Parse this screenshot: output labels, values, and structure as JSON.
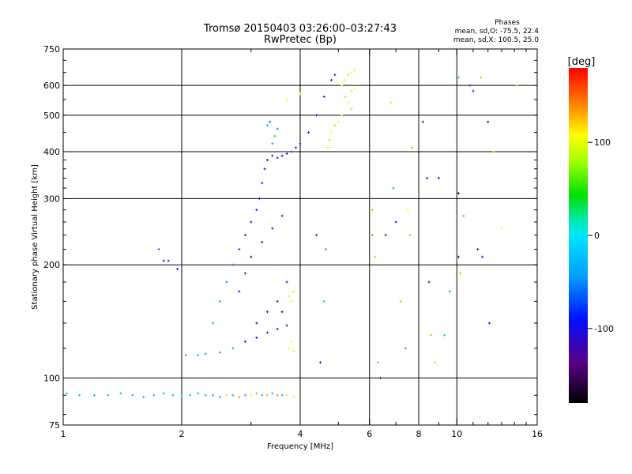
{
  "chart_data": {
    "type": "scatter",
    "title": "Tromsø 20150403 03:26:00–03:27:43",
    "subtitle": "RwPretec (Bp)",
    "xlabel": "Frequency [MHz]",
    "ylabel": "Stationary phase Virtual Height [km]",
    "x_scale": "log",
    "y_scale": "log",
    "xlim": [
      1,
      16
    ],
    "ylim": [
      75,
      750
    ],
    "x_ticks": [
      1,
      2,
      4,
      6,
      8,
      10,
      16
    ],
    "y_ticks": [
      75,
      100,
      200,
      300,
      400,
      500,
      600,
      750
    ],
    "x_major_lines": [
      2,
      4,
      6,
      8,
      10
    ],
    "y_major_lines": [
      100,
      200,
      300,
      400,
      500,
      600
    ],
    "grid": true,
    "phase_info": {
      "heading": "Phases",
      "line1": "mean, sd,O: -75.5, 22.4",
      "line2": "mean, sd,X: 100.5, 25.0"
    },
    "colorbar": {
      "label": "[deg]",
      "range": [
        -180,
        180
      ],
      "ticks": [
        100,
        0,
        -100
      ],
      "tick_labels": [
        "100",
        "0",
        "-100"
      ],
      "colormap": "rainbow"
    },
    "series": [
      {
        "description": "E-layer trace",
        "points": [
          [
            1.02,
            91,
            -30
          ],
          [
            1.1,
            90,
            -30
          ],
          [
            1.2,
            90,
            -30
          ],
          [
            1.3,
            90,
            -28
          ],
          [
            1.4,
            91,
            -30
          ],
          [
            1.5,
            90,
            -30
          ],
          [
            1.6,
            89,
            -30
          ],
          [
            1.7,
            90,
            -28
          ],
          [
            1.8,
            91,
            -30
          ],
          [
            1.9,
            90,
            -30
          ],
          [
            2.0,
            90,
            -30
          ],
          [
            2.1,
            90,
            -28
          ],
          [
            2.2,
            91,
            -30
          ],
          [
            2.3,
            90,
            -30
          ],
          [
            2.4,
            90,
            -30
          ],
          [
            2.5,
            89,
            -28
          ],
          [
            2.6,
            90,
            120
          ],
          [
            2.7,
            90,
            -30
          ],
          [
            2.8,
            89,
            140
          ],
          [
            2.9,
            90,
            -30
          ],
          [
            3.0,
            90,
            100
          ],
          [
            3.1,
            91,
            140
          ],
          [
            3.2,
            90,
            -30
          ],
          [
            3.3,
            90,
            130
          ],
          [
            3.4,
            91,
            -30
          ],
          [
            3.5,
            90,
            140
          ],
          [
            3.6,
            90,
            -30
          ],
          [
            3.7,
            90,
            120
          ],
          [
            3.85,
            89,
            100
          ]
        ]
      },
      {
        "description": "F1/F2 low trace",
        "points": [
          [
            2.05,
            115,
            -40
          ],
          [
            2.2,
            115,
            -40
          ],
          [
            2.3,
            116,
            -40
          ],
          [
            2.5,
            117,
            -40
          ],
          [
            2.7,
            120,
            -40
          ],
          [
            2.9,
            125,
            -90
          ],
          [
            3.1,
            128,
            -90
          ],
          [
            3.3,
            132,
            -100
          ],
          [
            3.5,
            135,
            -110
          ],
          [
            3.7,
            138,
            -110
          ],
          [
            3.75,
            120,
            110
          ],
          [
            3.8,
            125,
            110
          ],
          [
            3.85,
            118,
            110
          ],
          [
            2.4,
            140,
            -30
          ],
          [
            2.5,
            160,
            -40
          ],
          [
            2.6,
            180,
            -50
          ],
          [
            2.7,
            200,
            -60
          ],
          [
            2.8,
            220,
            -80
          ],
          [
            2.9,
            240,
            -90
          ],
          [
            3.0,
            260,
            -90
          ],
          [
            3.1,
            280,
            -100
          ],
          [
            3.15,
            300,
            -100
          ],
          [
            3.2,
            330,
            -100
          ],
          [
            3.25,
            360,
            -110
          ],
          [
            3.3,
            380,
            -110
          ],
          [
            3.4,
            390,
            -110
          ],
          [
            3.5,
            385,
            -110
          ],
          [
            3.6,
            390,
            -110
          ],
          [
            3.7,
            395,
            -110
          ],
          [
            3.8,
            400,
            -110
          ],
          [
            3.9,
            410,
            -110
          ],
          [
            4.0,
            420,
            -100
          ],
          [
            4.2,
            450,
            -100
          ],
          [
            4.4,
            500,
            -100
          ],
          [
            4.6,
            560,
            -100
          ],
          [
            4.8,
            620,
            -100
          ],
          [
            4.9,
            640,
            -100
          ],
          [
            2.8,
            170,
            -90
          ],
          [
            2.9,
            190,
            -100
          ],
          [
            3.0,
            210,
            -100
          ],
          [
            3.2,
            230,
            -100
          ],
          [
            3.4,
            250,
            -100
          ],
          [
            3.6,
            270,
            -100
          ],
          [
            3.7,
            180,
            -100
          ],
          [
            3.5,
            160,
            -100
          ],
          [
            3.3,
            150,
            -110
          ],
          [
            3.1,
            140,
            -110
          ],
          [
            3.6,
            150,
            -110
          ],
          [
            3.75,
            165,
            110
          ],
          [
            3.8,
            160,
            110
          ],
          [
            3.85,
            170,
            110
          ],
          [
            3.4,
            420,
            -40
          ],
          [
            3.5,
            460,
            -50
          ],
          [
            3.3,
            470,
            -40
          ],
          [
            3.35,
            480,
            -60
          ],
          [
            3.45,
            440,
            30
          ]
        ]
      },
      {
        "description": "X-mode trace",
        "points": [
          [
            5.1,
            600,
            110
          ],
          [
            5.2,
            620,
            110
          ],
          [
            5.3,
            640,
            120
          ],
          [
            5.4,
            650,
            100
          ],
          [
            5.5,
            660,
            110
          ],
          [
            5.2,
            560,
            120
          ],
          [
            5.3,
            540,
            110
          ],
          [
            5.4,
            520,
            120
          ],
          [
            5.1,
            500,
            110
          ],
          [
            5.0,
            480,
            100
          ],
          [
            4.9,
            470,
            120
          ],
          [
            4.8,
            450,
            110
          ],
          [
            4.75,
            430,
            120
          ],
          [
            4.7,
            410,
            100
          ],
          [
            5.4,
            580,
            90
          ],
          [
            5.5,
            590,
            100
          ]
        ]
      },
      {
        "description": "Scattered noise",
        "points": [
          [
            1.75,
            220,
            -60
          ],
          [
            1.8,
            205,
            -110
          ],
          [
            1.85,
            205,
            -110
          ],
          [
            1.95,
            195,
            -100
          ],
          [
            3.7,
            550,
            110
          ],
          [
            4.0,
            570,
            110
          ],
          [
            4.4,
            240,
            -110
          ],
          [
            4.6,
            160,
            30
          ],
          [
            4.65,
            220,
            -40
          ],
          [
            4.5,
            110,
            -100
          ],
          [
            6.1,
            280,
            130
          ],
          [
            6.1,
            240,
            140
          ],
          [
            6.2,
            210,
            130
          ],
          [
            6.3,
            110,
            140
          ],
          [
            6.4,
            100,
            -150
          ],
          [
            6.6,
            240,
            -100
          ],
          [
            6.8,
            540,
            120
          ],
          [
            6.9,
            320,
            -30
          ],
          [
            7.0,
            260,
            -110
          ],
          [
            7.2,
            160,
            130
          ],
          [
            7.4,
            120,
            -40
          ],
          [
            7.5,
            280,
            110
          ],
          [
            7.6,
            240,
            130
          ],
          [
            7.7,
            410,
            130
          ],
          [
            8.2,
            480,
            -140
          ],
          [
            8.4,
            340,
            -110
          ],
          [
            8.5,
            180,
            -120
          ],
          [
            8.6,
            130,
            130
          ],
          [
            8.8,
            110,
            120
          ],
          [
            9.0,
            340,
            -100
          ],
          [
            9.3,
            130,
            -20
          ],
          [
            9.6,
            170,
            -40
          ],
          [
            10.1,
            630,
            -10
          ],
          [
            10.1,
            310,
            -150
          ],
          [
            10.1,
            210,
            -120
          ],
          [
            10.2,
            190,
            130
          ],
          [
            10.4,
            270,
            140
          ],
          [
            10.8,
            600,
            -110
          ],
          [
            11.0,
            580,
            -110
          ],
          [
            11.3,
            220,
            -140
          ],
          [
            11.5,
            630,
            130
          ],
          [
            11.6,
            210,
            -110
          ],
          [
            12.0,
            480,
            -160
          ],
          [
            12.1,
            140,
            -100
          ],
          [
            12.4,
            400,
            130
          ],
          [
            13.0,
            250,
            110
          ],
          [
            14.2,
            600,
            120
          ]
        ]
      }
    ]
  }
}
